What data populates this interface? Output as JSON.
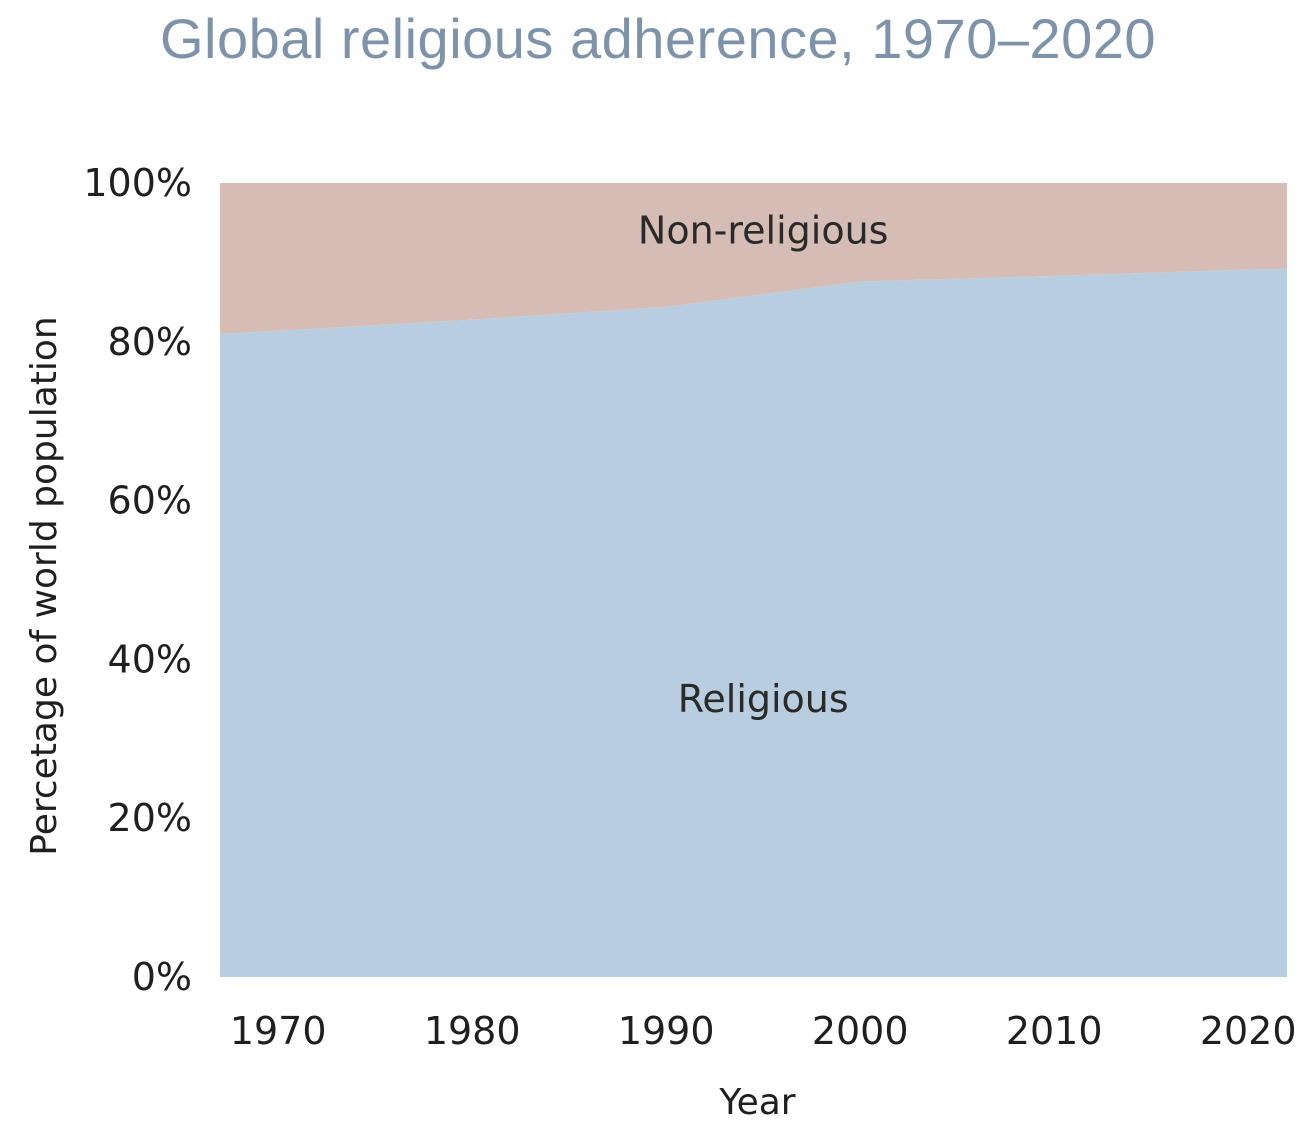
{
  "chart_data": {
    "type": "area",
    "stacked": true,
    "percent": true,
    "title": "Global religious adherence, 1970–2020",
    "xlabel": "Year",
    "ylabel": "Percetage of world population",
    "xlim": [
      1967,
      2022
    ],
    "ylim": [
      0,
      100
    ],
    "x_ticks": [
      1970,
      1980,
      1990,
      2000,
      2010,
      2020
    ],
    "x_tick_labels": [
      "1970",
      "1980",
      "1990",
      "2000",
      "2010",
      "2020"
    ],
    "y_ticks": [
      0,
      20,
      40,
      60,
      80,
      100
    ],
    "y_tick_labels": [
      "0%",
      "20%",
      "40%",
      "60%",
      "80%",
      "100%"
    ],
    "grid": false,
    "legend": "none",
    "x": [
      1967,
      1970,
      1980,
      1990,
      2000,
      2010,
      2020,
      2022
    ],
    "series": [
      {
        "name": "Religious",
        "color": "#b8cde0",
        "values": [
          81.0,
          81.4,
          82.8,
          84.4,
          87.6,
          88.3,
          89.1,
          89.2
        ]
      },
      {
        "name": "Non-religious",
        "color": "#d5bcb4",
        "values": [
          19.0,
          18.6,
          17.2,
          15.6,
          12.4,
          11.7,
          10.9,
          10.8
        ]
      }
    ],
    "annotations": [
      {
        "text": "Non-religious",
        "x": 1995,
        "y": 94
      },
      {
        "text": "Religious",
        "x": 1995,
        "y": 35
      }
    ]
  }
}
